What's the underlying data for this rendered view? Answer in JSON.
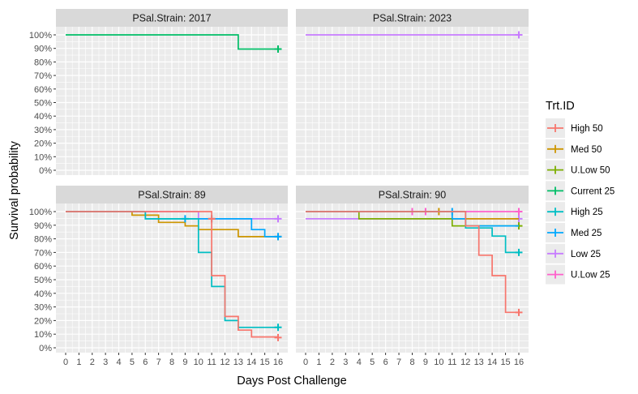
{
  "chart_data": {
    "type": "line",
    "step": true,
    "xlabel": "Days Post Challenge",
    "ylabel": "Survival probability",
    "xlim": [
      0,
      16
    ],
    "ylim": [
      0,
      1
    ],
    "x_ticks": [
      0,
      1,
      2,
      3,
      4,
      5,
      6,
      7,
      8,
      9,
      10,
      11,
      12,
      13,
      14,
      15,
      16
    ],
    "y_ticks": [
      0,
      0.1,
      0.2,
      0.3,
      0.4,
      0.5,
      0.6,
      0.7,
      0.8,
      0.9,
      1.0
    ],
    "y_tick_labels": [
      "0%",
      "10%",
      "20%",
      "30%",
      "40%",
      "50%",
      "60%",
      "70%",
      "80%",
      "90%",
      "100%"
    ],
    "grid": true,
    "legend": {
      "title": "Trt.ID",
      "position": "right",
      "entries": [
        {
          "name": "High 50",
          "color": "#F8766D"
        },
        {
          "name": "Med 50",
          "color": "#CD9600"
        },
        {
          "name": "U.Low 50",
          "color": "#7CAE00"
        },
        {
          "name": "Current 25",
          "color": "#00BE67"
        },
        {
          "name": "High 25",
          "color": "#00BFC4"
        },
        {
          "name": "Med 25",
          "color": "#00A9FF"
        },
        {
          "name": "Low 25",
          "color": "#C77CFF"
        },
        {
          "name": "U.Low 25",
          "color": "#FF61CC"
        }
      ]
    },
    "panels": [
      {
        "title": "PSal.Strain: 2017",
        "series": [
          {
            "name": "Current 25",
            "x": [
              0,
              13,
              16
            ],
            "y": [
              1.0,
              0.895,
              0.895
            ],
            "censor": [
              [
                16,
                0.895
              ]
            ]
          }
        ]
      },
      {
        "title": "PSal.Strain: 2023",
        "series": [
          {
            "name": "Low 25",
            "x": [
              0,
              16
            ],
            "y": [
              1.0,
              1.0
            ],
            "censor": [
              [
                16,
                1.0
              ]
            ]
          }
        ]
      },
      {
        "title": "PSal.Strain: 89",
        "series": [
          {
            "name": "Low 25",
            "x": [
              0,
              10,
              16
            ],
            "y": [
              1.0,
              0.947,
              0.947
            ],
            "censor": [
              [
                16,
                0.947
              ]
            ]
          },
          {
            "name": "Med 50",
            "x": [
              0,
              5,
              7,
              9,
              10,
              13,
              16
            ],
            "y": [
              1.0,
              0.974,
              0.921,
              0.895,
              0.868,
              0.816,
              0.816
            ],
            "censor": [
              [
                16,
                0.816
              ]
            ]
          },
          {
            "name": "Med 25",
            "x": [
              0,
              6,
              9,
              14,
              15,
              16
            ],
            "y": [
              1.0,
              0.947,
              0.947,
              0.868,
              0.816,
              0.816
            ],
            "censor": [
              [
                9,
                0.947
              ],
              [
                11,
                0.947
              ],
              [
                16,
                0.816
              ]
            ]
          },
          {
            "name": "High 25",
            "x": [
              0,
              6,
              10,
              11,
              12,
              13,
              16
            ],
            "y": [
              1.0,
              0.947,
              0.7,
              0.45,
              0.2,
              0.15,
              0.15
            ],
            "censor": [
              [
                16,
                0.15
              ]
            ]
          },
          {
            "name": "High 50",
            "x": [
              0,
              11,
              12,
              13,
              14,
              16
            ],
            "y": [
              1.0,
              0.53,
              0.23,
              0.13,
              0.08,
              0.08
            ],
            "censor": [
              [
                11,
                0.947
              ],
              [
                16,
                0.075
              ]
            ]
          }
        ]
      },
      {
        "title": "PSal.Strain: 90",
        "series": [
          {
            "name": "U.Low 25",
            "x": [
              0,
              16
            ],
            "y": [
              1.0,
              1.0
            ],
            "censor": [
              [
                8,
                1.0
              ],
              [
                9,
                1.0
              ],
              [
                16,
                1.0
              ]
            ]
          },
          {
            "name": "Low 25",
            "x": [
              0,
              16
            ],
            "y": [
              0.947,
              0.947
            ],
            "censor": [
              [
                16,
                0.947
              ]
            ]
          },
          {
            "name": "Med 50",
            "x": [
              0,
              11,
              16
            ],
            "y": [
              1.0,
              0.947,
              0.947
            ],
            "censor": [
              [
                10,
                1.0
              ]
            ]
          },
          {
            "name": "U.Low 50",
            "x": [
              0,
              4,
              11,
              16
            ],
            "y": [
              1.0,
              0.947,
              0.895,
              0.895
            ],
            "censor": [
              [
                16,
                0.895
              ]
            ]
          },
          {
            "name": "Med 25",
            "x": [
              0,
              11,
              12,
              16
            ],
            "y": [
              1.0,
              0.947,
              0.895,
              0.895
            ],
            "censor": [
              [
                11,
                1.0
              ]
            ]
          },
          {
            "name": "High 25",
            "x": [
              0,
              12,
              14,
              15,
              16
            ],
            "y": [
              1.0,
              0.88,
              0.82,
              0.7,
              0.7
            ],
            "censor": [
              [
                16,
                0.7
              ]
            ]
          },
          {
            "name": "High 50",
            "x": [
              0,
              12,
              13,
              14,
              15,
              16
            ],
            "y": [
              1.0,
              0.895,
              0.68,
              0.53,
              0.26,
              0.26
            ],
            "censor": [
              [
                16,
                0.26
              ]
            ]
          }
        ]
      }
    ]
  }
}
